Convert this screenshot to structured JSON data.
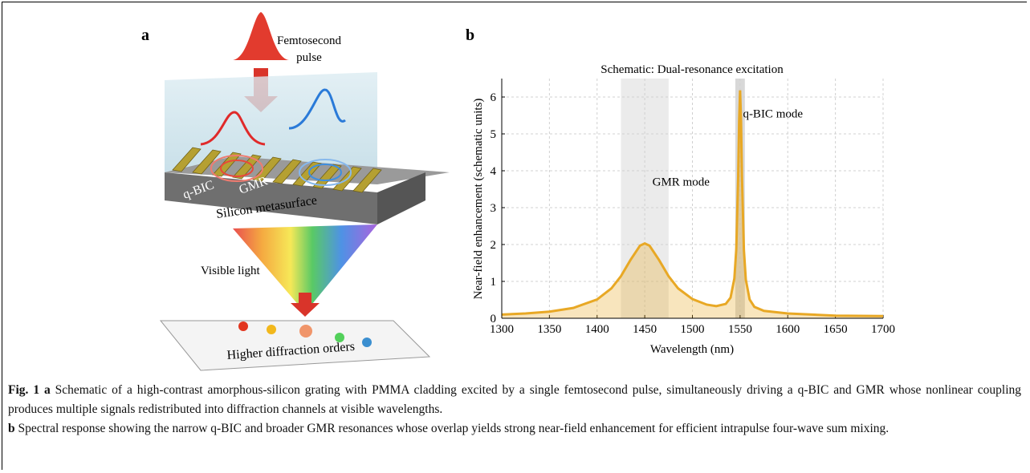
{
  "panel_a": {
    "label": "a",
    "pulse_label": [
      "Femtosecond",
      "pulse"
    ],
    "mode_labels": [
      "q-BIC",
      "GMR"
    ],
    "substrate_label": "Silicon metasurface",
    "light_label": "Visible light",
    "screen_label": "Higher diffraction orders"
  },
  "chart_data": {
    "type": "line",
    "panel_label": "b",
    "title": "Schematic: Dual-resonance excitation",
    "x_label": "Wavelength (nm)",
    "y_label": "Near-field enhancement (schematic units)",
    "xlim": [
      1300,
      1700
    ],
    "ylim": [
      0,
      6.5
    ],
    "xticks": [
      1300,
      1350,
      1400,
      1450,
      1500,
      1550,
      1600,
      1650,
      1700
    ],
    "yticks": [
      0,
      1,
      2,
      3,
      4,
      5,
      6
    ],
    "grid": true,
    "bands": [
      [
        1425,
        1475
      ],
      [
        1545,
        1555
      ]
    ],
    "annotations": [
      {
        "text": "q-BIC mode",
        "x": 1553,
        "y": 5.45
      },
      {
        "text": "GMR mode",
        "x": 1458,
        "y": 3.6
      }
    ],
    "series": [
      {
        "color": "#e8a825",
        "x": [
          1300,
          1325,
          1350,
          1375,
          1400,
          1415,
          1425,
          1435,
          1445,
          1450,
          1455,
          1465,
          1475,
          1485,
          1500,
          1515,
          1525,
          1535,
          1540,
          1544,
          1546,
          1548,
          1549,
          1550,
          1551,
          1552,
          1554,
          1556,
          1560,
          1565,
          1575,
          1600,
          1650,
          1700
        ],
        "values": [
          0.1,
          0.13,
          0.18,
          0.28,
          0.51,
          0.81,
          1.14,
          1.58,
          1.97,
          2.03,
          1.97,
          1.58,
          1.14,
          0.81,
          0.52,
          0.37,
          0.33,
          0.39,
          0.56,
          1.08,
          1.87,
          3.84,
          5.35,
          6.18,
          5.34,
          3.83,
          1.85,
          1.05,
          0.51,
          0.31,
          0.2,
          0.13,
          0.07,
          0.06
        ]
      }
    ]
  },
  "caption": {
    "label": "Fig. 1",
    "a_label": "a",
    "a_text": "Schematic of a high-contrast amorphous-silicon grating with PMMA cladding excited by a single femtosecond pulse, simultaneously driving a q-BIC and GMR whose nonlinear coupling produces multiple signals redistributed into diffraction channels at visible wavelengths.",
    "b_label": "b",
    "b_text": "Spectral response showing the narrow q-BIC and broader GMR resonances whose overlap yields strong near-field enhancement for efficient intrapulse four-wave sum mixing."
  }
}
